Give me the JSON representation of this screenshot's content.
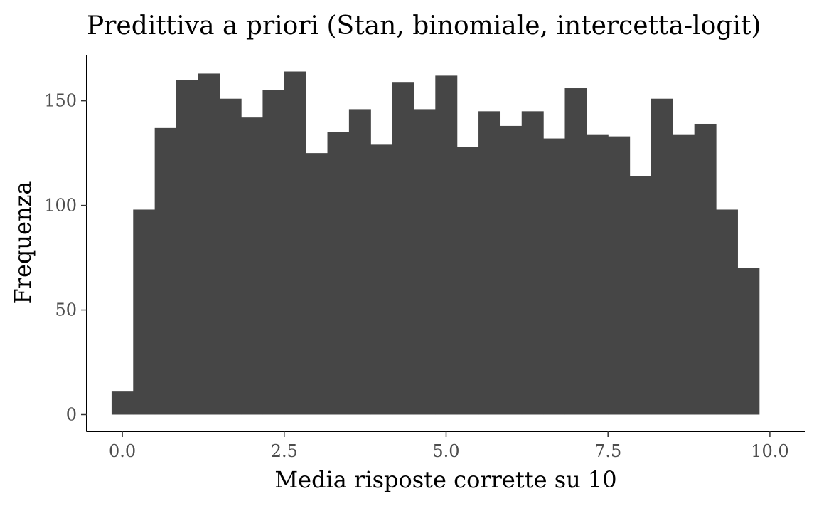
{
  "chart_data": {
    "type": "bar",
    "title": "Predittiva a priori (Stan, binomiale, intercetta-logit)",
    "xlabel": "Media risposte corrette su 10",
    "ylabel": "Frequenza",
    "xlim": [
      -0.55,
      10.55
    ],
    "ylim": [
      -8,
      172
    ],
    "xticks": [
      0.0,
      2.5,
      5.0,
      7.5,
      10.0
    ],
    "xtick_labels": [
      "0.0",
      "2.5",
      "5.0",
      "7.5",
      "10.0"
    ],
    "yticks": [
      0,
      50,
      100,
      150
    ],
    "ytick_labels": [
      "0",
      "50",
      "100",
      "150"
    ],
    "grid": false,
    "legend": "none",
    "bar_color": "#464646",
    "bin_width": 0.3333,
    "bin_centers": [
      0.0,
      0.3333,
      0.6667,
      1.0,
      1.3333,
      1.6667,
      2.0,
      2.3333,
      2.6667,
      3.0,
      3.3333,
      3.6667,
      4.0,
      4.3333,
      4.6667,
      5.0,
      5.3333,
      5.6667,
      6.0,
      6.3333,
      6.6667,
      7.0,
      7.3333,
      7.6667,
      8.0,
      8.3333,
      8.6667,
      9.0,
      9.3333,
      9.6667,
      10.0
    ],
    "values": [
      11,
      98,
      137,
      160,
      163,
      151,
      142,
      155,
      164,
      125,
      135,
      146,
      129,
      159,
      146,
      162,
      128,
      145,
      138,
      145,
      132,
      156,
      134,
      133,
      114,
      151,
      134,
      139,
      98,
      70,
      0
    ]
  }
}
